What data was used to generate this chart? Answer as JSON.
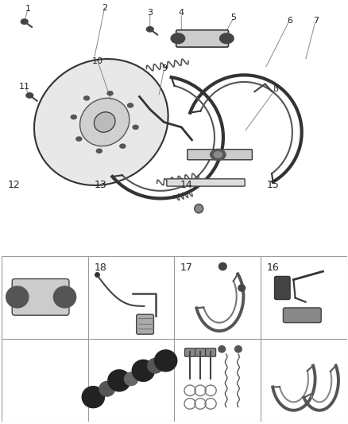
{
  "bg_color": "#ffffff",
  "label_fontsize": 8,
  "grid_label_fontsize": 9,
  "labels": [
    "1",
    "2",
    "3",
    "4",
    "5",
    "6",
    "7",
    "8",
    "9",
    "10",
    "11"
  ],
  "grid_cells": [
    {
      "id": "12",
      "row": 1,
      "col": 0
    },
    {
      "id": "13",
      "row": 1,
      "col": 1
    },
    {
      "id": "14",
      "row": 1,
      "col": 2
    },
    {
      "id": "15",
      "row": 1,
      "col": 3
    },
    {
      "id": "18",
      "row": 0,
      "col": 1
    },
    {
      "id": "17",
      "row": 0,
      "col": 2
    },
    {
      "id": "16",
      "row": 0,
      "col": 3
    }
  ]
}
